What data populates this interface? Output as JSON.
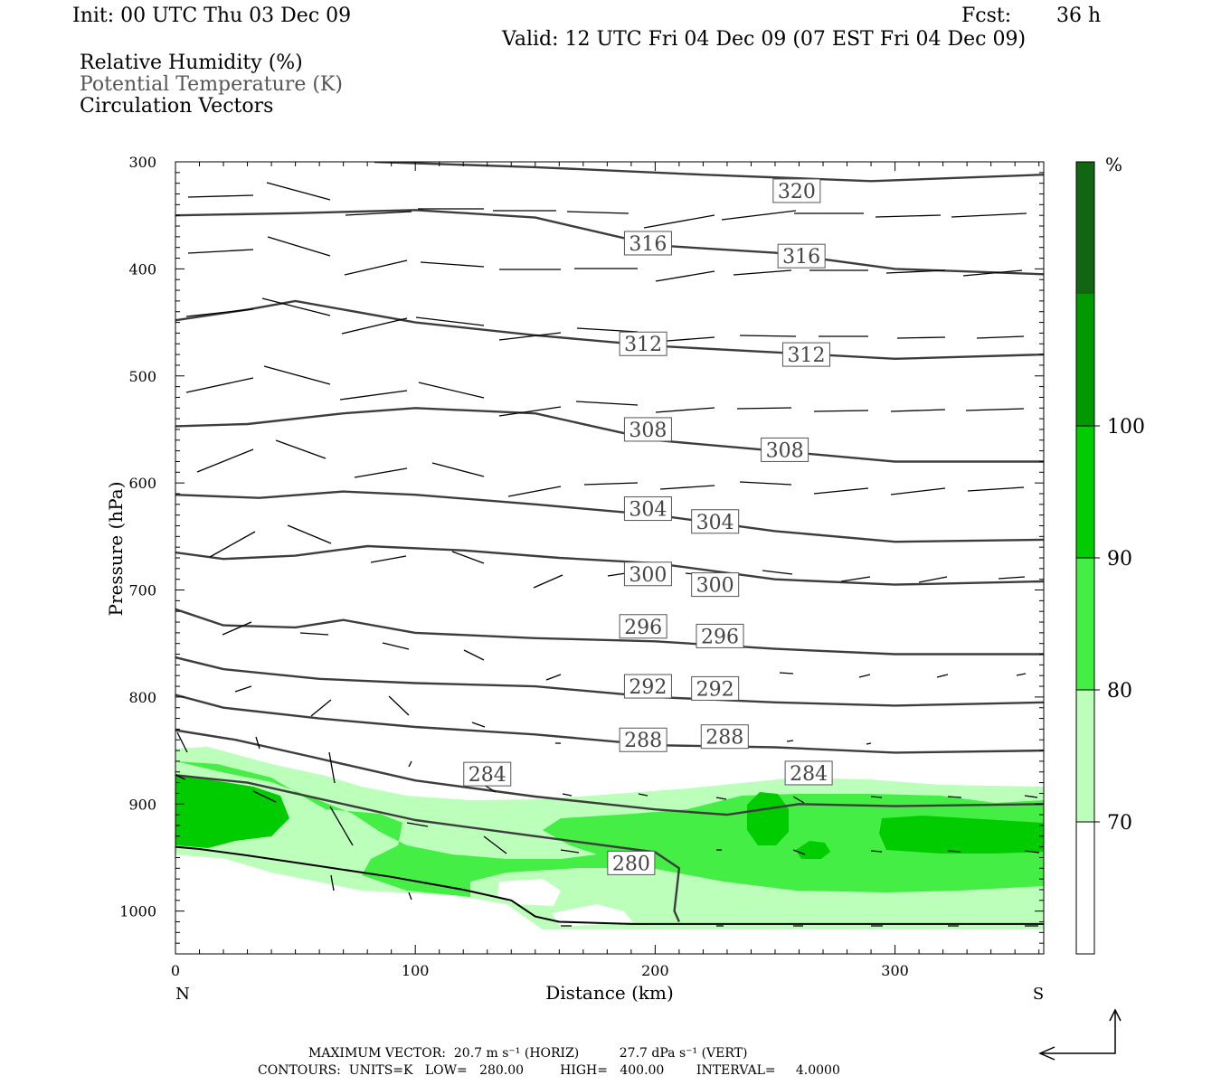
{
  "header": {
    "init": "Init: 00 UTC Thu 03 Dec 09",
    "fcst_label": "Fcst:",
    "fcst_value": "36 h",
    "valid": "Valid: 12 UTC Fri 04 Dec 09 (07 EST Fri 04 Dec 09)"
  },
  "legend_lines": [
    {
      "text": "Relative Humidity (%)",
      "color": "#000000"
    },
    {
      "text": "Potential Temperature (K)",
      "color": "#555555"
    },
    {
      "text": "Circulation Vectors",
      "color": "#000000"
    }
  ],
  "footer": {
    "max_vector": "MAXIMUM VECTOR:  20.7 m s⁻¹ (HORIZ)          27.7 dPa s⁻¹ (VERT)",
    "contours": "CONTOURS:  UNITS=K   LOW=   280.00         HIGH=   400.00        INTERVAL=     4.0000"
  },
  "chart_data": {
    "type": "cross-section",
    "xlabel": "Distance (km)",
    "ylabel": "Pressure (hPa)",
    "xlim": [
      0,
      362
    ],
    "ylim": [
      1040,
      300
    ],
    "x_ticks": [
      0,
      100,
      200,
      300
    ],
    "y_ticks": [
      300,
      400,
      500,
      600,
      700,
      800,
      900,
      1000
    ],
    "x_end_labels": {
      "left": "N",
      "right": "S"
    },
    "colorbar": {
      "unit": "%",
      "levels": [
        70,
        80,
        90,
        100
      ],
      "colors": [
        "#ffffff",
        "#bbffbb",
        "#44ee44",
        "#00cc00",
        "#009900",
        "#116611"
      ]
    },
    "theta_contours": [
      {
        "value": 320,
        "points": [
          [
            83,
            300
          ],
          [
            150,
            305
          ],
          [
            220,
            312
          ],
          [
            290,
            318
          ],
          [
            362,
            312
          ]
        ]
      },
      {
        "value": 316,
        "points": [
          [
            0,
            350
          ],
          [
            50,
            348
          ],
          [
            100,
            345
          ],
          [
            150,
            352
          ],
          [
            200,
            378
          ],
          [
            250,
            385
          ],
          [
            300,
            400
          ],
          [
            362,
            405
          ]
        ]
      },
      {
        "value": 312,
        "points": [
          [
            0,
            448
          ],
          [
            30,
            438
          ],
          [
            50,
            430
          ],
          [
            100,
            450
          ],
          [
            150,
            462
          ],
          [
            200,
            472
          ],
          [
            250,
            478
          ],
          [
            300,
            484
          ],
          [
            362,
            480
          ]
        ]
      },
      {
        "value": 308,
        "points": [
          [
            0,
            547
          ],
          [
            30,
            545
          ],
          [
            70,
            535
          ],
          [
            100,
            530
          ],
          [
            150,
            535
          ],
          [
            200,
            560
          ],
          [
            250,
            570
          ],
          [
            300,
            580
          ],
          [
            362,
            580
          ]
        ]
      },
      {
        "value": 304,
        "points": [
          [
            0,
            611
          ],
          [
            35,
            614
          ],
          [
            70,
            608
          ],
          [
            100,
            611
          ],
          [
            150,
            620
          ],
          [
            200,
            630
          ],
          [
            250,
            645
          ],
          [
            300,
            655
          ],
          [
            362,
            653
          ]
        ]
      },
      {
        "value": 300,
        "points": [
          [
            0,
            665
          ],
          [
            20,
            671
          ],
          [
            50,
            668
          ],
          [
            80,
            659
          ],
          [
            120,
            663
          ],
          [
            160,
            670
          ],
          [
            200,
            675
          ],
          [
            250,
            690
          ],
          [
            300,
            695
          ],
          [
            362,
            692
          ]
        ]
      },
      {
        "value": 296,
        "points": [
          [
            0,
            718
          ],
          [
            20,
            733
          ],
          [
            50,
            735
          ],
          [
            70,
            728
          ],
          [
            100,
            740
          ],
          [
            150,
            745
          ],
          [
            200,
            748
          ],
          [
            250,
            755
          ],
          [
            300,
            760
          ],
          [
            362,
            760
          ]
        ]
      },
      {
        "value": 292,
        "points": [
          [
            0,
            763
          ],
          [
            20,
            774
          ],
          [
            60,
            783
          ],
          [
            100,
            787
          ],
          [
            150,
            790
          ],
          [
            200,
            800
          ],
          [
            250,
            805
          ],
          [
            300,
            808
          ],
          [
            362,
            805
          ]
        ]
      },
      {
        "value": 288,
        "points": [
          [
            0,
            798
          ],
          [
            20,
            810
          ],
          [
            60,
            820
          ],
          [
            100,
            828
          ],
          [
            150,
            835
          ],
          [
            200,
            845
          ],
          [
            250,
            847
          ],
          [
            300,
            852
          ],
          [
            362,
            850
          ]
        ]
      },
      {
        "value": 284,
        "points": [
          [
            0,
            831
          ],
          [
            25,
            840
          ],
          [
            55,
            855
          ],
          [
            100,
            878
          ],
          [
            150,
            893
          ],
          [
            200,
            905
          ],
          [
            230,
            910
          ],
          [
            260,
            900
          ],
          [
            300,
            902
          ],
          [
            362,
            900
          ]
        ]
      },
      {
        "value": 280,
        "points": [
          [
            0,
            873
          ],
          [
            30,
            880
          ],
          [
            60,
            895
          ],
          [
            100,
            915
          ],
          [
            150,
            930
          ],
          [
            200,
            945
          ],
          [
            210,
            960
          ],
          [
            208,
            1000
          ],
          [
            210,
            1010
          ]
        ]
      }
    ],
    "theta_labels": [
      {
        "value": 320,
        "x": 259,
        "p": 327
      },
      {
        "value": 316,
        "x": 197,
        "p": 376
      },
      {
        "value": 316,
        "x": 261,
        "p": 388
      },
      {
        "value": 312,
        "x": 195,
        "p": 470
      },
      {
        "value": 312,
        "x": 263,
        "p": 480
      },
      {
        "value": 308,
        "x": 197,
        "p": 550
      },
      {
        "value": 308,
        "x": 254,
        "p": 569
      },
      {
        "value": 304,
        "x": 197,
        "p": 624
      },
      {
        "value": 304,
        "x": 225,
        "p": 636
      },
      {
        "value": 300,
        "x": 197,
        "p": 685
      },
      {
        "value": 300,
        "x": 225,
        "p": 695
      },
      {
        "value": 296,
        "x": 195,
        "p": 734
      },
      {
        "value": 296,
        "x": 227,
        "p": 743
      },
      {
        "value": 292,
        "x": 197,
        "p": 790
      },
      {
        "value": 292,
        "x": 225,
        "p": 792
      },
      {
        "value": 288,
        "x": 195,
        "p": 840
      },
      {
        "value": 288,
        "x": 229,
        "p": 837
      },
      {
        "value": 284,
        "x": 130,
        "p": 872
      },
      {
        "value": 284,
        "x": 264,
        "p": 871
      },
      {
        "value": 280,
        "x": 190,
        "p": 955
      }
    ],
    "terrain_surface": [
      [
        0,
        940
      ],
      [
        10,
        942
      ],
      [
        30,
        948
      ],
      [
        60,
        958
      ],
      [
        90,
        968
      ],
      [
        120,
        980
      ],
      [
        140,
        990
      ],
      [
        150,
        1005
      ],
      [
        160,
        1010
      ],
      [
        190,
        1012
      ],
      [
        230,
        1012
      ],
      [
        300,
        1012
      ],
      [
        362,
        1012
      ]
    ]
  }
}
